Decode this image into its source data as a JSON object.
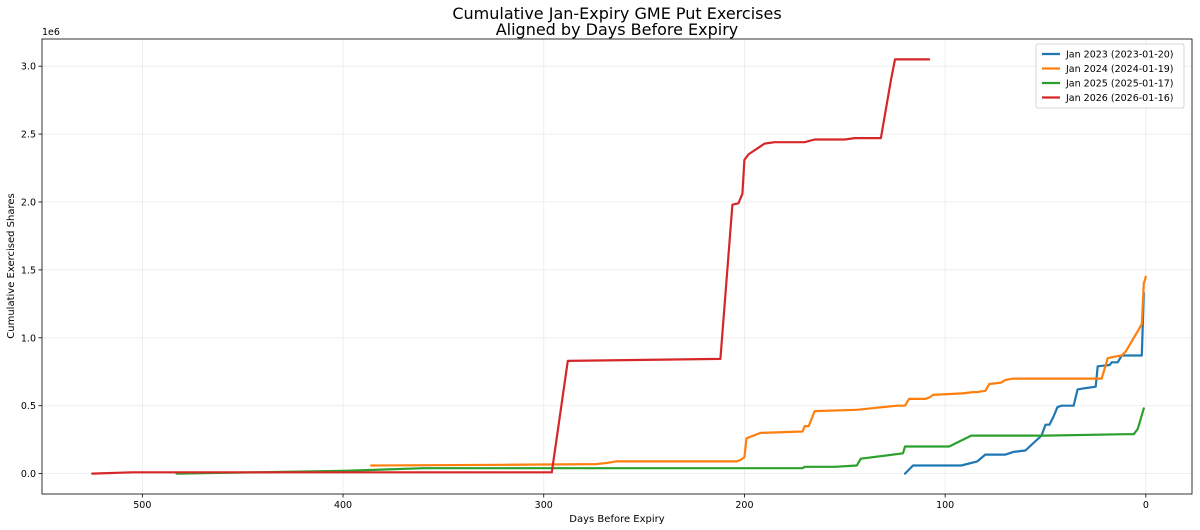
{
  "chart_data": {
    "type": "line",
    "title": "Cumulative Jan-Expiry GME Put Exercises",
    "subtitle": "Aligned by Days Before Expiry",
    "xlabel": "Days Before Expiry",
    "ylabel": "Cumulative Exercised Shares",
    "y_offset_text": "1e6",
    "xlim": [
      550,
      -23
    ],
    "ylim": [
      -0.15,
      3.2
    ],
    "x_axis_inverted": true,
    "x_ticks": [
      500,
      400,
      300,
      200,
      100,
      0
    ],
    "y_ticks": [
      0.0,
      0.5,
      1.0,
      1.5,
      2.0,
      2.5,
      3.0
    ],
    "x_tick_labels": [
      "500",
      "400",
      "300",
      "200",
      "100",
      "0"
    ],
    "y_tick_labels": [
      "0.0",
      "0.5",
      "1.0",
      "1.5",
      "2.0",
      "2.5",
      "3.0"
    ],
    "grid": true,
    "legend_position": "top-right",
    "series": [
      {
        "name": "Jan 2023 (2023-01-20)",
        "color": "#1f77b4",
        "x": [
          120,
          116,
          92,
          84,
          80,
          70,
          66,
          60,
          52,
          50,
          48,
          46,
          44,
          42,
          36,
          34,
          30,
          25,
          24,
          18,
          17,
          14,
          12,
          8,
          2,
          1
        ],
        "y": [
          0.0,
          0.06,
          0.06,
          0.09,
          0.14,
          0.14,
          0.16,
          0.17,
          0.28,
          0.36,
          0.36,
          0.42,
          0.49,
          0.5,
          0.5,
          0.62,
          0.63,
          0.64,
          0.79,
          0.8,
          0.82,
          0.82,
          0.87,
          0.87,
          0.87,
          1.33
        ]
      },
      {
        "name": "Jan 2024 (2024-01-19)",
        "color": "#ff7f0e",
        "x": [
          386,
          320,
          274,
          268,
          264,
          204,
          202,
          200,
          199,
          192,
          171,
          170,
          168,
          165,
          144,
          124,
          120,
          118,
          110,
          108,
          106,
          93,
          92,
          86,
          84,
          80,
          78,
          72,
          70,
          66,
          60,
          22,
          19,
          16,
          12,
          10,
          6,
          2,
          1,
          0
        ],
        "y": [
          0.06,
          0.065,
          0.07,
          0.08,
          0.09,
          0.09,
          0.1,
          0.12,
          0.26,
          0.3,
          0.31,
          0.35,
          0.35,
          0.46,
          0.47,
          0.5,
          0.5,
          0.55,
          0.55,
          0.56,
          0.58,
          0.59,
          0.59,
          0.6,
          0.6,
          0.61,
          0.66,
          0.67,
          0.69,
          0.7,
          0.7,
          0.7,
          0.85,
          0.86,
          0.87,
          0.9,
          1.0,
          1.1,
          1.4,
          1.45
        ]
      },
      {
        "name": "Jan 2025 (2025-01-17)",
        "color": "#2ca02c",
        "x": [
          483,
          400,
          360,
          300,
          250,
          171,
          170,
          155,
          144,
          142,
          121,
          120,
          98,
          87,
          50,
          10,
          6,
          4,
          1
        ],
        "y": [
          0.0,
          0.02,
          0.04,
          0.04,
          0.04,
          0.04,
          0.05,
          0.05,
          0.06,
          0.11,
          0.15,
          0.2,
          0.2,
          0.28,
          0.28,
          0.29,
          0.29,
          0.33,
          0.48
        ]
      },
      {
        "name": "Jan 2026 (2026-01-16)",
        "color": "#d62728",
        "x": [
          525,
          505,
          460,
          400,
          350,
          296,
          288,
          212,
          206,
          203,
          201,
          200,
          198,
          190,
          185,
          170,
          165,
          150,
          145,
          135,
          132,
          127,
          125,
          108
        ],
        "y": [
          0.0,
          0.01,
          0.01,
          0.01,
          0.01,
          0.01,
          0.83,
          0.845,
          1.98,
          1.99,
          2.06,
          2.31,
          2.35,
          2.43,
          2.44,
          2.44,
          2.46,
          2.46,
          2.47,
          2.47,
          2.47,
          2.9,
          3.05,
          3.05
        ]
      }
    ]
  }
}
